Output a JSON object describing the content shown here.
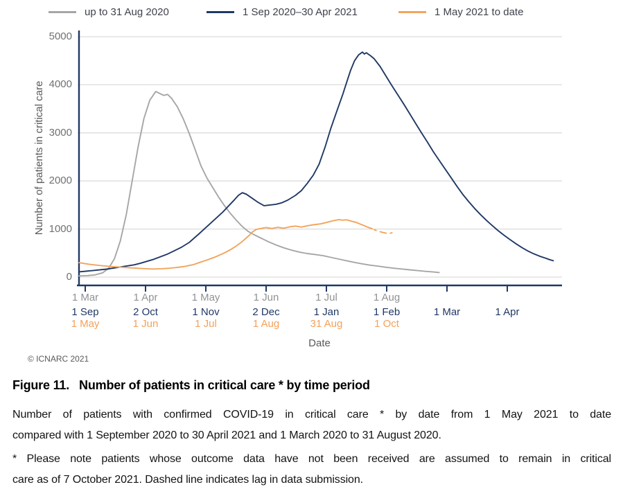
{
  "figure": {
    "copyright": "© ICNARC 2021",
    "caption": {
      "prefix": "Figure 11.",
      "title": "Number of patients in critical care * by time period"
    },
    "body_lines": [
      "Number of patients with confirmed COVID-19 in critical care * by date from 1 May 2021 to date",
      "compared with 1 September 2020 to 30 April 2021 and 1 March 2020 to 31 August 2020."
    ],
    "footnote_lines": [
      "* Please note patients whose outcome data have not been received are assumed to remain in critical",
      "care as of 7 October 2021. Dashed line indicates lag in data submission."
    ]
  },
  "legend": {
    "items": [
      {
        "label": "up to 31 Aug 2020",
        "color": "#a6a6a6"
      },
      {
        "label": "1 Sep 2020–30 Apr 2021",
        "color": "#1f3864"
      },
      {
        "label": "1 May 2021 to date",
        "color": "#f2a45c"
      }
    ]
  },
  "y_axis": {
    "title": "Number of patients in critical care",
    "ticks": [
      0,
      1000,
      2000,
      3000,
      4000,
      5000
    ]
  },
  "x_axis": {
    "title": "Date",
    "rows": [
      {
        "name": "row-2020",
        "color": "#8f9193",
        "labels": [
          "1 Mar",
          "1 Apr",
          "1 May",
          "1 Jun",
          "1 Jul",
          "1 Aug"
        ]
      },
      {
        "name": "row-2020-21",
        "color": "#1f3864",
        "labels": [
          "1 Sep",
          "2 Oct",
          "1 Nov",
          "2 Dec",
          "1 Jan",
          "1 Feb",
          "1 Mar",
          "1 Apr"
        ]
      },
      {
        "name": "row-2021",
        "color": "#f5a158",
        "labels": [
          "1 May",
          "1 Jun",
          "1 Jul",
          "1 Aug",
          "31 Aug",
          "1 Oct"
        ]
      }
    ]
  },
  "chart_data": {
    "type": "line",
    "title": "",
    "xlabel": "Date",
    "ylabel": "Number of patients in critical care",
    "ylim": [
      0,
      5000
    ],
    "grid": true,
    "x_unit": "days since start of each period (periods overlaid month-aligned)",
    "legend_position": "top",
    "series": [
      {
        "name": "up to 31 Aug 2020",
        "id": "period-2020",
        "color": "#a6a6a6",
        "start_date": "1 Mar 2020",
        "end_date": "31 Aug 2020",
        "peak": {
          "value": 3860,
          "approx_date": "mid Apr 2020"
        },
        "points": [
          [
            0,
            25
          ],
          [
            4,
            30
          ],
          [
            8,
            45
          ],
          [
            12,
            90
          ],
          [
            15,
            180
          ],
          [
            18,
            380
          ],
          [
            21,
            750
          ],
          [
            24,
            1300
          ],
          [
            27,
            2000
          ],
          [
            30,
            2700
          ],
          [
            33,
            3300
          ],
          [
            36,
            3680
          ],
          [
            39,
            3860
          ],
          [
            41,
            3820
          ],
          [
            43,
            3780
          ],
          [
            45,
            3800
          ],
          [
            47,
            3720
          ],
          [
            50,
            3540
          ],
          [
            53,
            3290
          ],
          [
            56,
            2990
          ],
          [
            59,
            2650
          ],
          [
            62,
            2310
          ],
          [
            65,
            2060
          ],
          [
            68,
            1860
          ],
          [
            71,
            1660
          ],
          [
            74,
            1480
          ],
          [
            77,
            1320
          ],
          [
            80,
            1180
          ],
          [
            83,
            1050
          ],
          [
            86,
            950
          ],
          [
            89,
            880
          ],
          [
            92,
            820
          ],
          [
            96,
            740
          ],
          [
            100,
            670
          ],
          [
            104,
            610
          ],
          [
            108,
            560
          ],
          [
            112,
            520
          ],
          [
            116,
            490
          ],
          [
            120,
            470
          ],
          [
            124,
            445
          ],
          [
            128,
            410
          ],
          [
            132,
            375
          ],
          [
            136,
            340
          ],
          [
            140,
            305
          ],
          [
            144,
            275
          ],
          [
            148,
            248
          ],
          [
            152,
            228
          ],
          [
            156,
            205
          ],
          [
            160,
            185
          ],
          [
            164,
            168
          ],
          [
            168,
            152
          ],
          [
            172,
            136
          ],
          [
            176,
            120
          ],
          [
            180,
            106
          ],
          [
            183,
            95
          ]
        ]
      },
      {
        "name": "1 Sep 2020–30 Apr 2021",
        "id": "period-2020-21",
        "color": "#1f3864",
        "start_date": "1 Sep 2020",
        "end_date": "30 Apr 2021",
        "peak": {
          "value": 4680,
          "approx_date": "late Jan 2021"
        },
        "points": [
          [
            0,
            110
          ],
          [
            7,
            135
          ],
          [
            14,
            165
          ],
          [
            21,
            210
          ],
          [
            28,
            255
          ],
          [
            31,
            285
          ],
          [
            38,
            370
          ],
          [
            45,
            480
          ],
          [
            52,
            620
          ],
          [
            56,
            720
          ],
          [
            61,
            900
          ],
          [
            65,
            1050
          ],
          [
            69,
            1200
          ],
          [
            73,
            1350
          ],
          [
            76,
            1480
          ],
          [
            79,
            1610
          ],
          [
            81,
            1700
          ],
          [
            83,
            1755
          ],
          [
            85,
            1725
          ],
          [
            88,
            1640
          ],
          [
            91,
            1555
          ],
          [
            94,
            1485
          ],
          [
            97,
            1500
          ],
          [
            100,
            1515
          ],
          [
            103,
            1545
          ],
          [
            106,
            1600
          ],
          [
            110,
            1700
          ],
          [
            113,
            1800
          ],
          [
            116,
            1950
          ],
          [
            119,
            2120
          ],
          [
            122,
            2350
          ],
          [
            125,
            2700
          ],
          [
            128,
            3100
          ],
          [
            131,
            3450
          ],
          [
            134,
            3800
          ],
          [
            136,
            4050
          ],
          [
            138,
            4300
          ],
          [
            140,
            4500
          ],
          [
            142,
            4620
          ],
          [
            144,
            4680
          ],
          [
            145,
            4640
          ],
          [
            146,
            4665
          ],
          [
            148,
            4610
          ],
          [
            150,
            4540
          ],
          [
            153,
            4380
          ],
          [
            156,
            4180
          ],
          [
            159,
            3980
          ],
          [
            162,
            3790
          ],
          [
            165,
            3600
          ],
          [
            168,
            3400
          ],
          [
            171,
            3200
          ],
          [
            174,
            3000
          ],
          [
            177,
            2810
          ],
          [
            180,
            2610
          ],
          [
            183,
            2430
          ],
          [
            186,
            2250
          ],
          [
            189,
            2070
          ],
          [
            192,
            1890
          ],
          [
            195,
            1720
          ],
          [
            198,
            1570
          ],
          [
            201,
            1430
          ],
          [
            204,
            1300
          ],
          [
            207,
            1180
          ],
          [
            210,
            1070
          ],
          [
            213,
            965
          ],
          [
            216,
            870
          ],
          [
            219,
            780
          ],
          [
            222,
            695
          ],
          [
            225,
            615
          ],
          [
            228,
            545
          ],
          [
            231,
            485
          ],
          [
            234,
            435
          ],
          [
            237,
            395
          ],
          [
            239,
            365
          ],
          [
            241,
            340
          ]
        ]
      },
      {
        "name": "1 May 2021 to date",
        "id": "period-2021",
        "color": "#f2a45c",
        "start_date": "1 May 2021",
        "end_date": "7 Oct 2021",
        "peak": {
          "value": 1195,
          "approx_date": "mid Sep 2021"
        },
        "points": [
          [
            0,
            300
          ],
          [
            5,
            268
          ],
          [
            10,
            243
          ],
          [
            15,
            225
          ],
          [
            20,
            210
          ],
          [
            25,
            196
          ],
          [
            31,
            182
          ],
          [
            35,
            172
          ],
          [
            38,
            168
          ],
          [
            42,
            174
          ],
          [
            46,
            184
          ],
          [
            50,
            202
          ],
          [
            54,
            225
          ],
          [
            58,
            258
          ],
          [
            61,
            300
          ],
          [
            65,
            355
          ],
          [
            69,
            415
          ],
          [
            73,
            485
          ],
          [
            77,
            570
          ],
          [
            80,
            650
          ],
          [
            83,
            740
          ],
          [
            86,
            850
          ],
          [
            88,
            935
          ],
          [
            90,
            990
          ],
          [
            92,
            1010
          ],
          [
            95,
            1030
          ],
          [
            98,
            1012
          ],
          [
            101,
            1035
          ],
          [
            104,
            1018
          ],
          [
            107,
            1045
          ],
          [
            110,
            1062
          ],
          [
            113,
            1040
          ],
          [
            116,
            1068
          ],
          [
            119,
            1088
          ],
          [
            123,
            1108
          ],
          [
            126,
            1140
          ],
          [
            129,
            1172
          ],
          [
            132,
            1195
          ],
          [
            134,
            1185
          ],
          [
            136,
            1192
          ],
          [
            138,
            1168
          ],
          [
            141,
            1135
          ],
          [
            144,
            1085
          ],
          [
            147,
            1035
          ],
          [
            149,
            1005
          ]
        ],
        "dashed_points": [
          [
            150,
            985
          ],
          [
            152,
            955
          ],
          [
            154,
            932
          ],
          [
            156,
            915
          ],
          [
            158,
            910
          ],
          [
            159,
            922
          ]
        ],
        "dashed_note": "Dashed line indicates lag in data submission"
      }
    ]
  },
  "colors": {
    "axis": "#1f3864",
    "gridline": "#dcdcdc",
    "tick_text_gray": "#8f9193",
    "tick_text_navy": "#1f3864",
    "tick_text_orange": "#f5a158",
    "muted_text": "#595959"
  }
}
